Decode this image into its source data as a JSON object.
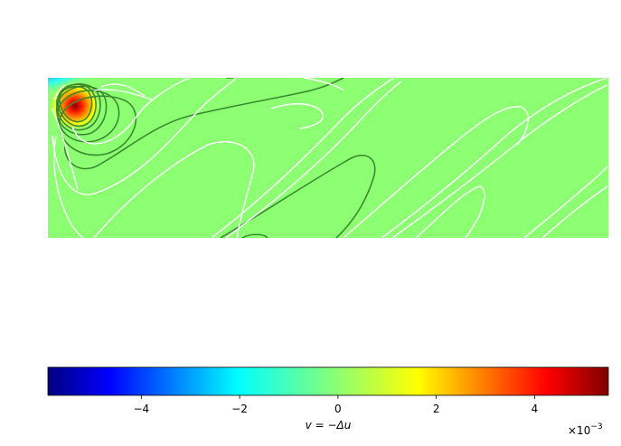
{
  "chart_data": {
    "type": "heatmap",
    "title": "",
    "description_of_field": "",
    "background_color": "#8cff73",
    "colormap": "jet",
    "colorbar": {
      "label": "v = −Δu",
      "ticks": [
        -4,
        -2,
        0,
        2,
        4
      ],
      "tick_labels": [
        "−4",
        "−2",
        "0",
        "2",
        "4"
      ],
      "range": [
        -5.9,
        5.5
      ],
      "scale_label": "×10",
      "scale_exponent": "−3"
    },
    "contour_colors": {
      "positive": "#3a8a2e",
      "negative": "#ffffff"
    },
    "grid": false
  }
}
